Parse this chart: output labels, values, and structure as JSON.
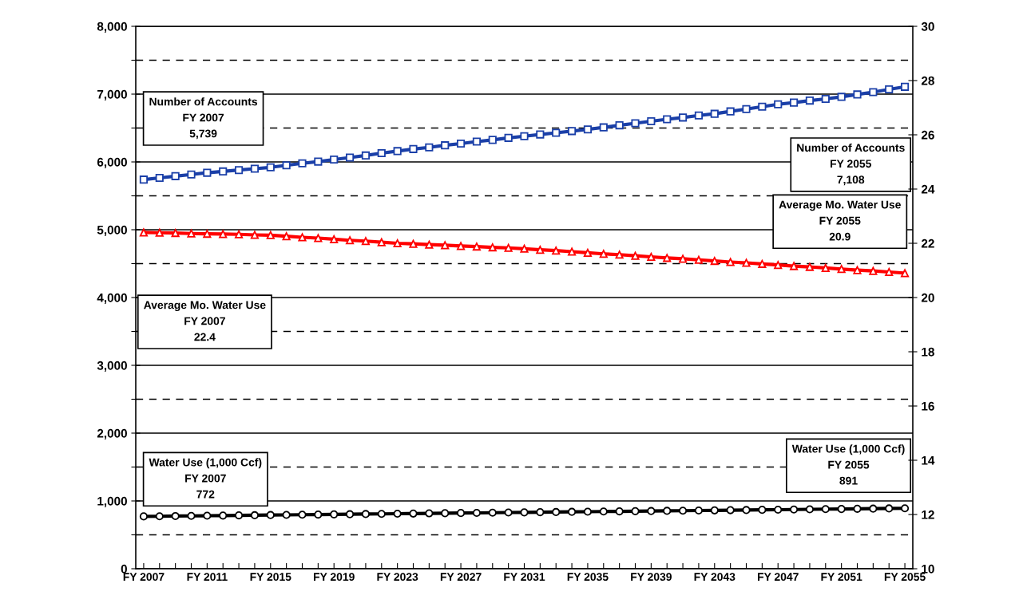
{
  "chart_data": {
    "type": "line",
    "categories": [
      "FY 2007",
      null,
      null,
      null,
      "FY 2011",
      null,
      null,
      null,
      "FY 2015",
      null,
      null,
      null,
      "FY 2019",
      null,
      null,
      null,
      "FY 2023",
      null,
      null,
      null,
      "FY 2027",
      null,
      null,
      null,
      "FY 2031",
      null,
      null,
      null,
      "FY 2035",
      null,
      null,
      null,
      "FY 2039",
      null,
      null,
      null,
      "FY 2043",
      null,
      null,
      null,
      "FY 2047",
      null,
      null,
      null,
      "FY 2051",
      null,
      null,
      null,
      "FY 2055"
    ],
    "series": [
      {
        "color": "#1a3fa8",
        "marker": "square",
        "values": [
          5739,
          5765,
          5790,
          5815,
          5840,
          5860,
          5880,
          5900,
          5920,
          5950,
          5980,
          6005,
          6035,
          6065,
          6095,
          6130,
          6160,
          6190,
          6215,
          6245,
          6270,
          6300,
          6325,
          6355,
          6380,
          6405,
          6430,
          6455,
          6480,
          6510,
          6540,
          6570,
          6600,
          6630,
          6655,
          6685,
          6710,
          6745,
          6780,
          6815,
          6850,
          6875,
          6905,
          6930,
          6960,
          6995,
          7030,
          7070,
          7108
        ]
      },
      {
        "color": "#ff0000",
        "marker": "triangle",
        "axis": "y2",
        "values": [
          22.4,
          22.39,
          22.38,
          22.36,
          22.35,
          22.34,
          22.33,
          22.31,
          22.3,
          22.26,
          22.22,
          22.19,
          22.15,
          22.11,
          22.08,
          22.04,
          22.0,
          21.98,
          21.95,
          21.93,
          21.9,
          21.88,
          21.85,
          21.83,
          21.8,
          21.76,
          21.73,
          21.69,
          21.65,
          21.61,
          21.58,
          21.54,
          21.5,
          21.46,
          21.43,
          21.39,
          21.35,
          21.31,
          21.28,
          21.24,
          21.2,
          21.16,
          21.13,
          21.09,
          21.05,
          21.01,
          20.98,
          20.94,
          20.9
        ]
      },
      {
        "color": "#000000",
        "marker": "circle",
        "values": [
          772,
          774,
          777,
          779,
          782,
          784,
          787,
          789,
          792,
          794,
          797,
          799,
          802,
          804,
          807,
          809,
          812,
          814,
          817,
          819,
          822,
          824,
          826,
          829,
          831,
          834,
          836,
          839,
          841,
          844,
          846,
          849,
          851,
          854,
          856,
          859,
          861,
          864,
          866,
          869,
          871,
          874,
          876,
          879,
          881,
          884,
          886,
          889,
          891
        ]
      }
    ],
    "ylim": [
      0,
      8000
    ],
    "yticks": [
      {
        "value": 0,
        "label": "0"
      },
      {
        "value": 500,
        "label": null
      },
      {
        "value": 1000,
        "label": "1,000"
      },
      {
        "value": 1500,
        "label": null
      },
      {
        "value": 2000,
        "label": "2,000"
      },
      {
        "value": 2500,
        "label": null
      },
      {
        "value": 3000,
        "label": "3,000"
      },
      {
        "value": 3500,
        "label": null
      },
      {
        "value": 4000,
        "label": "4,000"
      },
      {
        "value": 4500,
        "label": null
      },
      {
        "value": 5000,
        "label": "5,000"
      },
      {
        "value": 5500,
        "label": null
      },
      {
        "value": 6000,
        "label": "6,000"
      },
      {
        "value": 6500,
        "label": null
      },
      {
        "value": 7000,
        "label": "7,000"
      },
      {
        "value": 7500,
        "label": null
      },
      {
        "value": 8000,
        "label": "8,000"
      }
    ],
    "y2lim": [
      10,
      30
    ],
    "y2ticks": [
      10,
      12,
      14,
      16,
      18,
      20,
      22,
      24,
      26,
      28,
      30
    ],
    "grid": "y",
    "line_style": "solid",
    "annotations": [
      "Number of Accounts\nFY 2007\n5,739",
      "Number of Accounts\nFY 2055\n7,108",
      "Average Mo. Water Use\nFY 2055\n20.9",
      "Average Mo. Water Use\nFY 2007\n22.4",
      "Water Use (1,000 Ccf)\nFY 2007\n772",
      "Water Use (1,000 Ccf)\nFY 2055\n891"
    ]
  }
}
